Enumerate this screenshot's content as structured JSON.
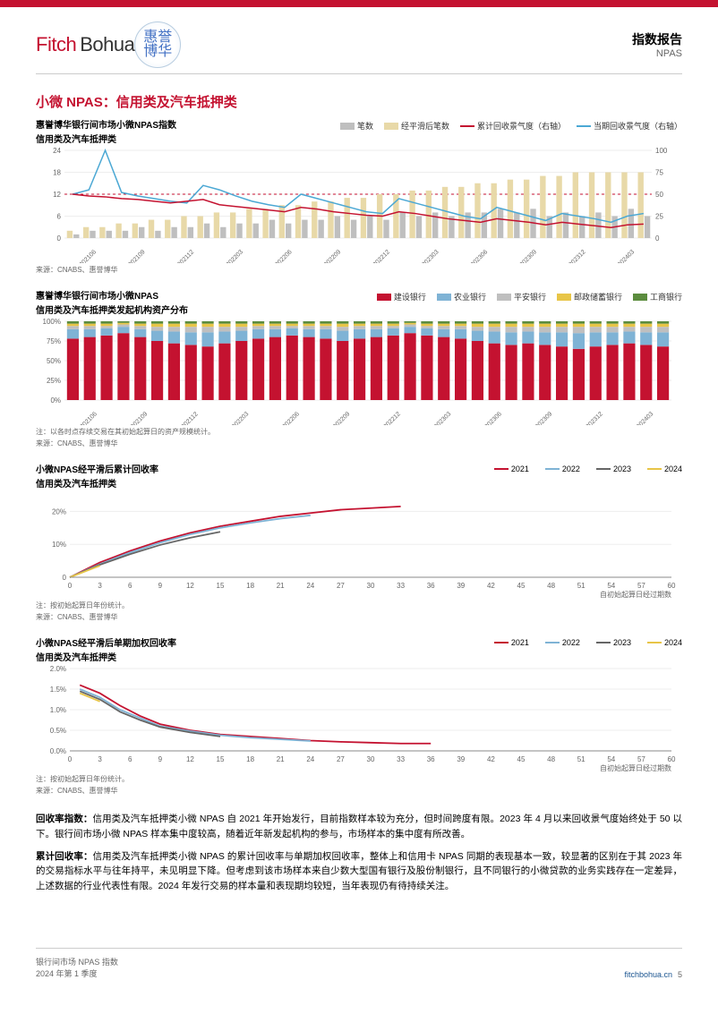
{
  "header": {
    "report_type": "指数报告",
    "report_sub": "NPAS"
  },
  "logo": {
    "fitch": "Fitch",
    "bohua": "Bohua",
    "seal1": "惠誉",
    "seal2": "博华"
  },
  "section_title": "小微 NPAS：信用类及汽车抵押类",
  "chart1": {
    "type": "combo-bar-line",
    "title": "惠誉博华银行间市场小微NPAS指数",
    "subtitle": "信用类及汽车抵押类",
    "legend": [
      {
        "label": "笔数",
        "kind": "box",
        "color": "#bfbfbf"
      },
      {
        "label": "经平滑后笔数",
        "kind": "box",
        "color": "#e8d9a8"
      },
      {
        "label": "累计回收景气度（右轴）",
        "kind": "line",
        "color": "#c41230"
      },
      {
        "label": "当期回收景气度（右轴）",
        "kind": "line",
        "color": "#4ba8d4"
      }
    ],
    "y_left": {
      "min": 0,
      "max": 24,
      "ticks": [
        0,
        6,
        12,
        18,
        24
      ]
    },
    "y_right": {
      "min": 0,
      "max": 100,
      "ticks": [
        0,
        25,
        50,
        75,
        100
      ]
    },
    "x_labels": [
      "202106",
      "202109",
      "202112",
      "202203",
      "202206",
      "202209",
      "202212",
      "202303",
      "202306",
      "202309",
      "202312",
      "202403"
    ],
    "bars_grey": [
      1,
      2,
      2,
      2,
      3,
      2,
      3,
      3,
      4,
      3,
      4,
      4,
      5,
      4,
      5,
      5,
      6,
      5,
      6,
      5,
      7,
      6,
      7,
      6,
      7,
      7,
      8,
      7,
      8,
      6,
      7,
      6,
      7,
      6,
      8,
      6
    ],
    "bars_tan": [
      2,
      3,
      3,
      4,
      4,
      5,
      5,
      6,
      6,
      7,
      7,
      8,
      8,
      9,
      9,
      10,
      10,
      11,
      11,
      12,
      12,
      13,
      13,
      14,
      14,
      15,
      15,
      16,
      16,
      17,
      17,
      18,
      18,
      18,
      18,
      18
    ],
    "line_red": [
      50,
      48,
      47,
      45,
      44,
      42,
      40,
      42,
      44,
      38,
      36,
      34,
      32,
      30,
      35,
      33,
      30,
      28,
      26,
      25,
      30,
      28,
      25,
      22,
      20,
      18,
      22,
      20,
      18,
      15,
      18,
      16,
      14,
      12,
      15,
      16
    ],
    "line_blue": [
      50,
      55,
      100,
      52,
      48,
      45,
      42,
      40,
      60,
      55,
      48,
      42,
      38,
      35,
      50,
      45,
      40,
      35,
      30,
      28,
      45,
      40,
      35,
      30,
      25,
      22,
      35,
      30,
      25,
      20,
      28,
      25,
      22,
      18,
      25,
      28
    ],
    "note": "来源：CNABS、惠誉博华",
    "colors": {
      "grid": "#e0e0e0",
      "axis": "#888"
    }
  },
  "chart2": {
    "type": "stacked-bar",
    "title": "惠誉博华银行间市场小微NPAS",
    "subtitle": "信用类及汽车抵押类发起机构资产分布",
    "legend": [
      {
        "label": "建设银行",
        "color": "#c41230"
      },
      {
        "label": "农业银行",
        "color": "#7fb3d5"
      },
      {
        "label": "平安银行",
        "color": "#bfbfbf"
      },
      {
        "label": "邮政储蓄银行",
        "color": "#e8c547"
      },
      {
        "label": "工商银行",
        "color": "#5b8c3e"
      }
    ],
    "y": {
      "min": 0,
      "max": 100,
      "ticks": [
        0,
        25,
        50,
        75,
        100
      ]
    },
    "x_labels": [
      "202106",
      "202109",
      "202112",
      "202203",
      "202206",
      "202209",
      "202212",
      "202303",
      "202306",
      "202309",
      "202312",
      "202403"
    ],
    "stacks": [
      [
        78,
        12,
        4,
        3,
        3
      ],
      [
        80,
        10,
        4,
        3,
        3
      ],
      [
        82,
        9,
        3,
        3,
        3
      ],
      [
        85,
        8,
        3,
        2,
        2
      ],
      [
        80,
        10,
        4,
        3,
        3
      ],
      [
        75,
        13,
        5,
        4,
        3
      ],
      [
        72,
        15,
        6,
        4,
        3
      ],
      [
        70,
        16,
        7,
        4,
        3
      ],
      [
        68,
        18,
        7,
        4,
        3
      ],
      [
        72,
        15,
        6,
        4,
        3
      ],
      [
        75,
        13,
        5,
        4,
        3
      ],
      [
        78,
        12,
        4,
        3,
        3
      ],
      [
        80,
        10,
        4,
        3,
        3
      ],
      [
        82,
        9,
        3,
        3,
        3
      ],
      [
        80,
        10,
        4,
        3,
        3
      ],
      [
        78,
        12,
        4,
        3,
        3
      ],
      [
        75,
        13,
        5,
        4,
        3
      ],
      [
        78,
        12,
        4,
        3,
        3
      ],
      [
        80,
        10,
        4,
        3,
        3
      ],
      [
        82,
        9,
        3,
        3,
        3
      ],
      [
        85,
        8,
        3,
        2,
        2
      ],
      [
        82,
        9,
        3,
        3,
        3
      ],
      [
        80,
        10,
        4,
        3,
        3
      ],
      [
        78,
        12,
        4,
        3,
        3
      ],
      [
        75,
        13,
        5,
        4,
        3
      ],
      [
        72,
        15,
        6,
        4,
        3
      ],
      [
        70,
        16,
        7,
        4,
        3
      ],
      [
        72,
        15,
        6,
        4,
        3
      ],
      [
        70,
        16,
        7,
        4,
        3
      ],
      [
        68,
        18,
        7,
        4,
        3
      ],
      [
        65,
        20,
        8,
        4,
        3
      ],
      [
        68,
        18,
        7,
        4,
        3
      ],
      [
        70,
        16,
        7,
        4,
        3
      ],
      [
        72,
        15,
        6,
        4,
        3
      ],
      [
        70,
        16,
        7,
        4,
        3
      ],
      [
        68,
        18,
        7,
        4,
        3
      ]
    ],
    "note1": "注：以各时点存续交易在其初始起算日的资产规模统计。",
    "note2": "来源：CNABS、惠誉博华"
  },
  "chart3": {
    "type": "line",
    "title": "小微NPAS经平滑后累计回收率",
    "subtitle": "信用类及汽车抵押类",
    "legend": [
      {
        "label": "2021",
        "color": "#c41230"
      },
      {
        "label": "2022",
        "color": "#7fb3d5"
      },
      {
        "label": "2023",
        "color": "#666666"
      },
      {
        "label": "2024",
        "color": "#e8c547"
      }
    ],
    "y": {
      "min": 0,
      "max": 0.25,
      "ticks": [
        0,
        0.1,
        0.2
      ],
      "tick_labels": [
        "0",
        "10%",
        "20%"
      ]
    },
    "x": {
      "min": 0,
      "max": 60,
      "ticks": [
        0,
        3,
        6,
        9,
        12,
        15,
        18,
        21,
        24,
        27,
        30,
        33,
        36,
        39,
        42,
        45,
        48,
        51,
        54,
        57,
        60
      ]
    },
    "x_label": "自初始起算日经过期数",
    "series": {
      "2021": [
        [
          0,
          0
        ],
        [
          3,
          0.045
        ],
        [
          6,
          0.08
        ],
        [
          9,
          0.11
        ],
        [
          12,
          0.135
        ],
        [
          15,
          0.155
        ],
        [
          18,
          0.17
        ],
        [
          21,
          0.185
        ],
        [
          24,
          0.195
        ],
        [
          27,
          0.205
        ],
        [
          30,
          0.21
        ],
        [
          33,
          0.215
        ]
      ],
      "2022": [
        [
          0,
          0
        ],
        [
          3,
          0.04
        ],
        [
          6,
          0.075
        ],
        [
          9,
          0.105
        ],
        [
          12,
          0.13
        ],
        [
          15,
          0.15
        ],
        [
          18,
          0.165
        ],
        [
          21,
          0.178
        ],
        [
          24,
          0.188
        ]
      ],
      "2023": [
        [
          0,
          0
        ],
        [
          3,
          0.038
        ],
        [
          6,
          0.07
        ],
        [
          9,
          0.098
        ],
        [
          12,
          0.12
        ],
        [
          15,
          0.138
        ]
      ],
      "2024": [
        [
          0,
          0
        ],
        [
          3,
          0.035
        ]
      ]
    },
    "note1": "注：按初始起算日年份统计。",
    "note2": "来源：CNABS、惠誉博华"
  },
  "chart4": {
    "type": "line",
    "title": "小微NPAS经平滑后单期加权回收率",
    "subtitle": "信用类及汽车抵押类",
    "legend": [
      {
        "label": "2021",
        "color": "#c41230"
      },
      {
        "label": "2022",
        "color": "#7fb3d5"
      },
      {
        "label": "2023",
        "color": "#666666"
      },
      {
        "label": "2024",
        "color": "#e8c547"
      }
    ],
    "y": {
      "min": 0,
      "max": 0.02,
      "ticks": [
        0,
        0.005,
        0.01,
        0.015,
        0.02
      ],
      "tick_labels": [
        "0.0%",
        "0.5%",
        "1.0%",
        "1.5%",
        "2.0%"
      ]
    },
    "x": {
      "min": 0,
      "max": 60,
      "ticks": [
        0,
        3,
        6,
        9,
        12,
        15,
        18,
        21,
        24,
        27,
        30,
        33,
        36,
        39,
        42,
        45,
        48,
        51,
        54,
        57,
        60
      ]
    },
    "x_label": "自初始起算日经过期数",
    "series": {
      "2021": [
        [
          1,
          0.016
        ],
        [
          3,
          0.014
        ],
        [
          5,
          0.011
        ],
        [
          7,
          0.0085
        ],
        [
          9,
          0.0065
        ],
        [
          12,
          0.005
        ],
        [
          15,
          0.004
        ],
        [
          18,
          0.0035
        ],
        [
          21,
          0.003
        ],
        [
          24,
          0.0025
        ],
        [
          27,
          0.0022
        ],
        [
          30,
          0.002
        ],
        [
          33,
          0.0018
        ],
        [
          36,
          0.0018
        ]
      ],
      "2022": [
        [
          1,
          0.015
        ],
        [
          3,
          0.013
        ],
        [
          5,
          0.01
        ],
        [
          7,
          0.008
        ],
        [
          9,
          0.006
        ],
        [
          12,
          0.0048
        ],
        [
          15,
          0.0038
        ],
        [
          18,
          0.0032
        ],
        [
          21,
          0.0028
        ],
        [
          24,
          0.0024
        ]
      ],
      "2023": [
        [
          1,
          0.0145
        ],
        [
          3,
          0.0125
        ],
        [
          5,
          0.0095
        ],
        [
          7,
          0.0075
        ],
        [
          9,
          0.0058
        ],
        [
          12,
          0.0045
        ],
        [
          15,
          0.0035
        ]
      ],
      "2024": [
        [
          1,
          0.014
        ],
        [
          3,
          0.012
        ]
      ]
    },
    "note1": "注：按初始起算日年份统计。",
    "note2": "来源：CNABS、惠誉博华"
  },
  "para1_label": "回收率指数：",
  "para1": "信用类及汽车抵押类小微 NPAS 自 2021 年开始发行，目前指数样本较为充分，但时间跨度有限。2023 年 4 月以来回收景气度始终处于 50 以下。银行间市场小微 NPAS 样本集中度较高，随着近年新发起机构的参与，市场样本的集中度有所改善。",
  "para2_label": "累计回收率：",
  "para2": "信用类及汽车抵押类小微 NPAS 的累计回收率与单期加权回收率，整体上和信用卡 NPAS 同期的表现基本一致，较显著的区别在于其 2023 年的交易指标水平与往年持平，未见明显下降。但考虑到该市场样本来自少数大型国有银行及股份制银行，且不同银行的小微贷款的业务实践存在一定差异，上述数据的行业代表性有限。2024 年发行交易的样本量和表现期均较短，当年表现仍有待持续关注。",
  "footer": {
    "line1": "银行间市场 NPAS 指数",
    "line2": "2024 年第 1 季度",
    "site": "fitchbohua.cn",
    "page": "5"
  }
}
